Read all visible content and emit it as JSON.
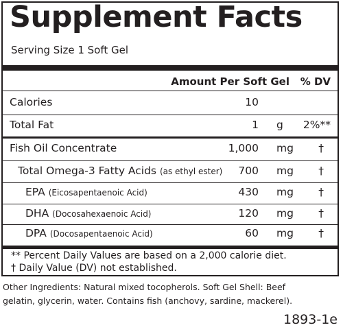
{
  "title": "Supplement Facts",
  "serving_size": "Serving Size 1 Soft Gel",
  "header": {
    "amount": "Amount Per Soft Gel",
    "dv": "% DV"
  },
  "calories": {
    "label": "Calories",
    "amount": "10"
  },
  "total_fat": {
    "label": "Total Fat",
    "amount": "1",
    "unit": "g",
    "dv": "2%**"
  },
  "fish_oil": {
    "label": "Fish Oil Concentrate",
    "amount": "1,000",
    "unit": "mg",
    "dv": "†"
  },
  "omega3": {
    "label": "Total Omega-3 Fatty Acids",
    "note": "(as ethyl ester)",
    "amount": "700",
    "unit": "mg",
    "dv": "†"
  },
  "epa": {
    "label": "EPA",
    "note": "(Eicosapentaenoic Acid)",
    "amount": "430",
    "unit": "mg",
    "dv": "†"
  },
  "dha": {
    "label": "DHA",
    "note": "(Docosahexaenoic Acid)",
    "amount": "120",
    "unit": "mg",
    "dv": "†"
  },
  "dpa": {
    "label": "DPA",
    "note": "(Docosapentaenoic Acid)",
    "amount": "60",
    "unit": "mg",
    "dv": "†"
  },
  "footnotes": [
    "** Percent Daily Values are based on a 2,000 calorie diet.",
    "† Daily Value (DV) not established."
  ],
  "ingredients": [
    "Other Ingredients: Natural mixed tocopherols. Soft Gel Shell: Beef",
    "gelatin, glycerin, water.  Contains fish (anchovy, sardine, mackerel)."
  ],
  "product_code": "1893-1e"
}
